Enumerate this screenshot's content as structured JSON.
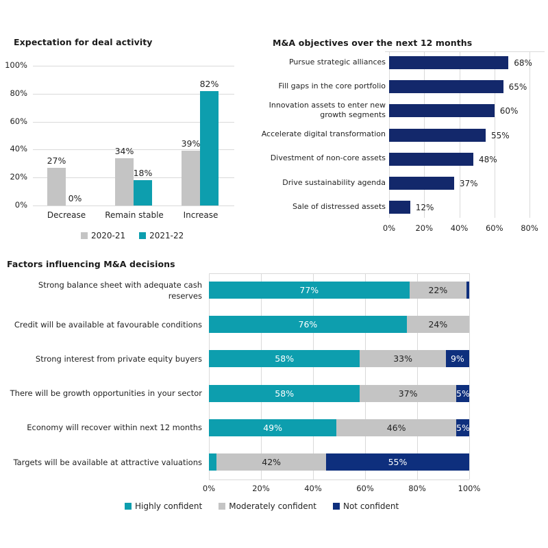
{
  "colors": {
    "teal": "#0D9EAE",
    "gray": "#C4C4C4",
    "navy": "#13286B",
    "navy_bright": "#0E2F7D",
    "grid": "#D9D9D9",
    "text": "#222222",
    "label_on_dark": "#FFFFFF"
  },
  "chart_data": [
    {
      "id": "deal-activity",
      "type": "bar",
      "orientation": "vertical",
      "title": "Expectation for deal activity",
      "categories": [
        "Decrease",
        "Remain stable",
        "Increase"
      ],
      "series": [
        {
          "name": "2020-21",
          "color": "gray",
          "values": [
            27,
            34,
            39
          ]
        },
        {
          "name": "2021-22",
          "color": "teal",
          "values": [
            0,
            18,
            82
          ]
        }
      ],
      "value_suffix": "%",
      "ylim": [
        0,
        100
      ],
      "yticks": [
        0,
        20,
        40,
        60,
        80,
        100
      ],
      "grid": true,
      "legend_position": "bottom"
    },
    {
      "id": "ma-objectives",
      "type": "bar",
      "orientation": "horizontal",
      "title": "M&A objectives over the next 12 months",
      "categories": [
        "Pursue strategic alliances",
        "Fill gaps in the core portfolio",
        "Innovation assets to enter new\ngrowth segments",
        "Accelerate digital transformation",
        "Divestment of non-core assets",
        "Drive sustainability agenda",
        "Sale of distressed assets"
      ],
      "values": [
        68,
        65,
        60,
        55,
        48,
        37,
        12
      ],
      "bar_color": "navy",
      "value_suffix": "%",
      "xlim": [
        0,
        80
      ],
      "xticks": [
        0,
        20,
        40,
        60,
        80
      ],
      "grid": true
    },
    {
      "id": "ma-factors",
      "type": "bar",
      "orientation": "horizontal",
      "stacked": true,
      "title": "Factors influencing M&A decisions",
      "categories": [
        "Strong balance sheet with adequate cash\nreserves",
        "Credit will be available at favourable conditions",
        "Strong interest from private equity buyers",
        "There will be growth opportunities in your sector",
        "Economy will recover within next 12 months",
        "Targets will be available at attractive valuations"
      ],
      "series": [
        {
          "name": "Highly confident",
          "color": "teal",
          "values": [
            77,
            76,
            58,
            58,
            49,
            3
          ]
        },
        {
          "name": "Moderately confident",
          "color": "gray",
          "values": [
            22,
            24,
            33,
            37,
            46,
            42
          ]
        },
        {
          "name": "Not confident",
          "color": "navy_bright",
          "values": [
            1,
            0,
            9,
            5,
            5,
            55
          ]
        }
      ],
      "value_suffix": "%",
      "min_label_value": 5,
      "xlim": [
        0,
        100
      ],
      "xticks": [
        0,
        20,
        40,
        60,
        80,
        100
      ],
      "grid": true,
      "legend_position": "bottom"
    }
  ]
}
